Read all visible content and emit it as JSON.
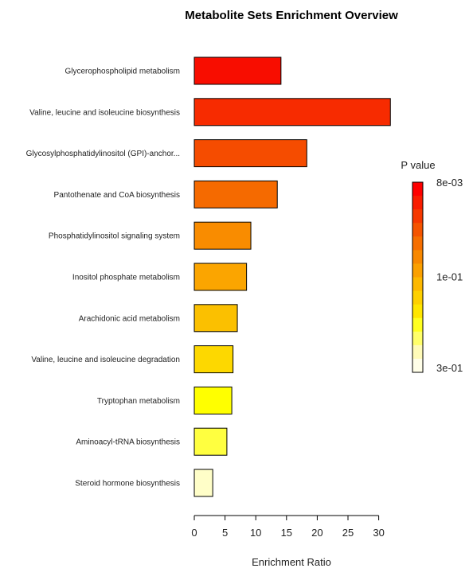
{
  "chart_data": {
    "type": "bar",
    "orientation": "horizontal",
    "title": "Metabolite Sets Enrichment Overview",
    "xlabel": "Enrichment Ratio",
    "ylabel": "",
    "xlim": [
      0,
      32
    ],
    "xticks": [
      0,
      5,
      10,
      15,
      20,
      25,
      30
    ],
    "grid": false,
    "categories": [
      "Glycerophospholipid metabolism",
      "Valine, leucine and isoleucine biosynthesis",
      "Glycosylphosphatidylinositol (GPI)-anchor...",
      "Pantothenate and CoA biosynthesis",
      "Phosphatidylinositol signaling system",
      "Inositol phosphate metabolism",
      "Arachidonic acid metabolism",
      "Valine, leucine and isoleucine degradation",
      "Tryptophan metabolism",
      "Aminoacyl-tRNA biosynthesis",
      "Steroid hormone biosynthesis"
    ],
    "values": [
      14.1,
      31.9,
      18.3,
      13.5,
      9.2,
      8.5,
      7.0,
      6.3,
      6.1,
      5.3,
      3.0
    ],
    "bar_colors": [
      "#f80d00",
      "#f72b00",
      "#f54c00",
      "#f56a00",
      "#f98c00",
      "#fba500",
      "#fbc000",
      "#fdd800",
      "#ffff00",
      "#ffff40",
      "#fffec8"
    ],
    "legend": {
      "title": "P value",
      "placement": "right",
      "labels": [
        "8e-03",
        "1e-01",
        "3e-01"
      ],
      "colors": [
        "#ff0000",
        "#f91c00",
        "#f63800",
        "#f55400",
        "#f66e00",
        "#f88800",
        "#fba000",
        "#fdb800",
        "#fed000",
        "#ffe600",
        "#ffff20",
        "#ffff6a",
        "#fffbb8",
        "#fffee8"
      ]
    }
  }
}
